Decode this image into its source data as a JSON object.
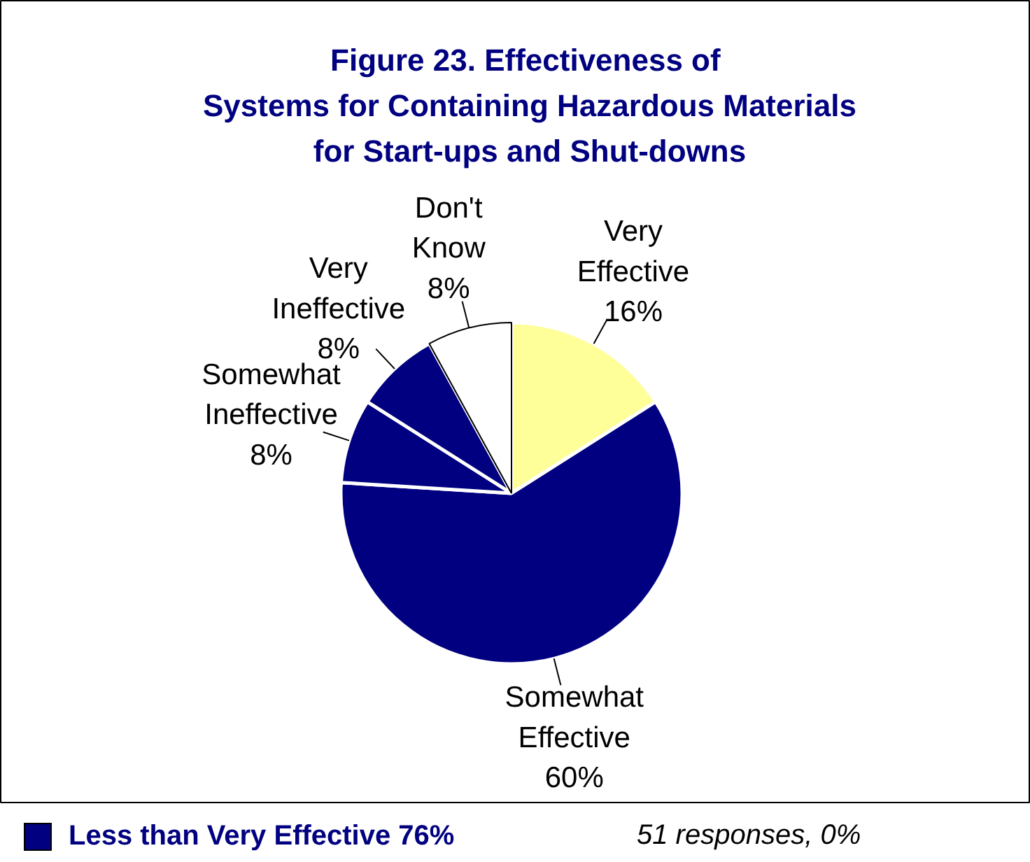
{
  "chart_data": {
    "type": "pie",
    "title": "Figure 23.  Effectiveness of\nSystems for Containing Hazardous Materials\nfor Start-ups and Shut-downs",
    "categories": [
      "Very Effective",
      "Somewhat Effective",
      "Somewhat Ineffective",
      "Very Ineffective",
      "Don't Know"
    ],
    "values": [
      16,
      60,
      8,
      8,
      8
    ],
    "colors": [
      "#ffff99",
      "#000080",
      "#000080",
      "#000080",
      "#ffffff"
    ],
    "value_labels": [
      "16%",
      "60%",
      "8%",
      "8%",
      "8%"
    ],
    "annotations": [
      "Less than Very Effective 76%",
      "51 responses, 0%"
    ]
  }
}
